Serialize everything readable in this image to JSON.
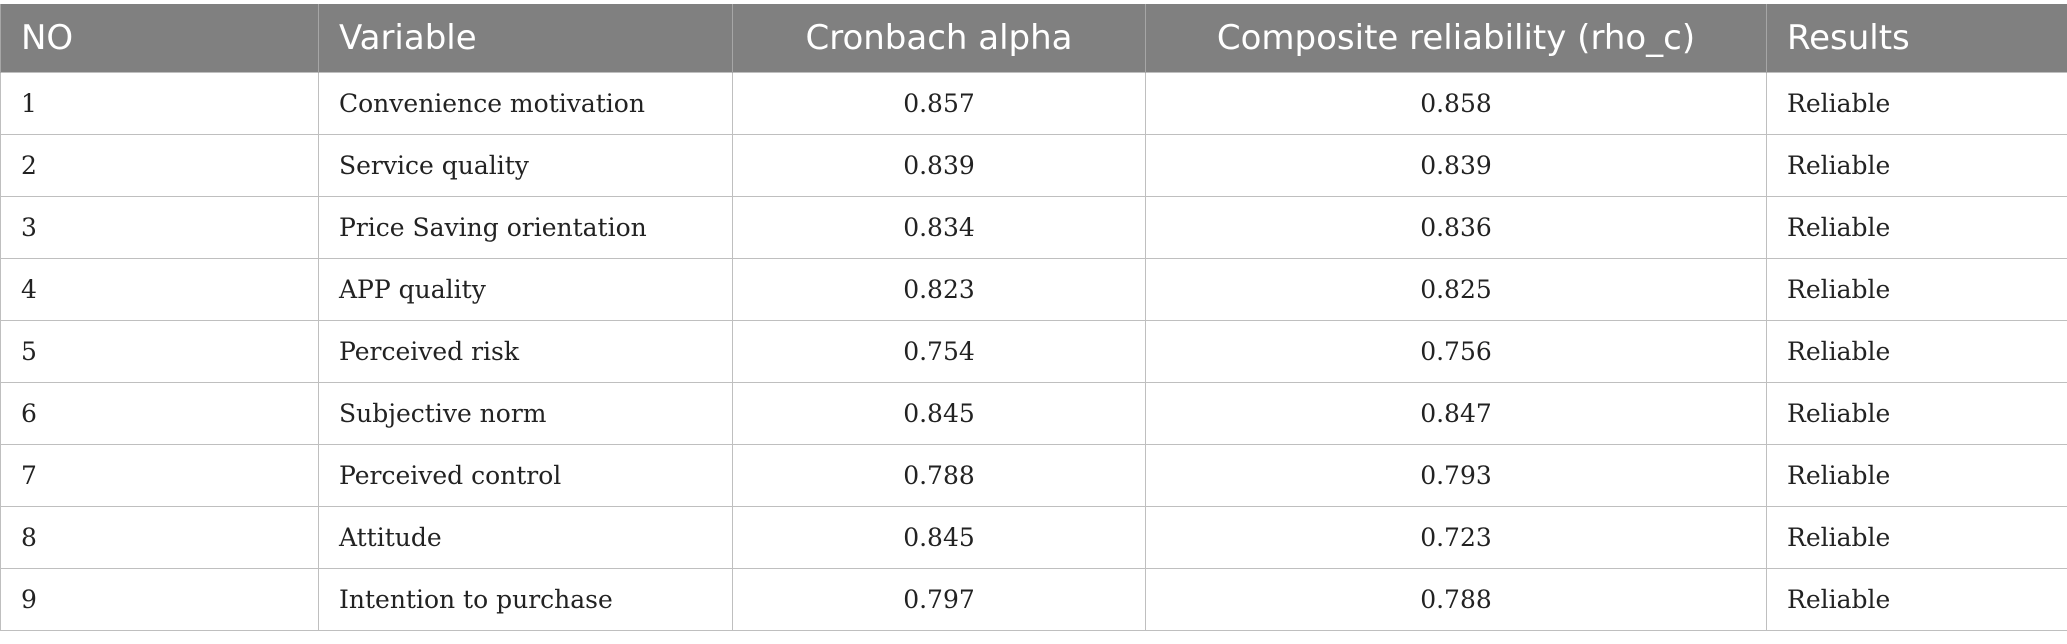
{
  "table": {
    "headers": [
      "NO",
      "Variable",
      "Cronbach alpha",
      "Composite reliability (rho_c)",
      "Results"
    ],
    "rows": [
      {
        "no": "1",
        "variable": "Convenience motivation",
        "alpha": "0.857",
        "cr": "0.858",
        "result": "Reliable"
      },
      {
        "no": "2",
        "variable": "Service quality",
        "alpha": "0.839",
        "cr": "0.839",
        "result": "Reliable"
      },
      {
        "no": "3",
        "variable": "Price Saving orientation",
        "alpha": "0.834",
        "cr": "0.836",
        "result": "Reliable"
      },
      {
        "no": "4",
        "variable": "APP quality",
        "alpha": "0.823",
        "cr": "0.825",
        "result": "Reliable"
      },
      {
        "no": "5",
        "variable": "Perceived risk",
        "alpha": "0.754",
        "cr": "0.756",
        "result": "Reliable"
      },
      {
        "no": "6",
        "variable": "Subjective norm",
        "alpha": "0.845",
        "cr": "0.847",
        "result": "Reliable"
      },
      {
        "no": "7",
        "variable": "Perceived control",
        "alpha": "0.788",
        "cr": "0.793",
        "result": "Reliable"
      },
      {
        "no": "8",
        "variable": "Attitude",
        "alpha": "0.845",
        "cr": "0.723",
        "result": "Reliable"
      },
      {
        "no": "9",
        "variable": "Intention to purchase",
        "alpha": "0.797",
        "cr": "0.788",
        "result": "Reliable"
      }
    ]
  },
  "colors": {
    "header_bg": "#808080",
    "header_text": "#ffffff",
    "grid": "#bfbfbf"
  }
}
